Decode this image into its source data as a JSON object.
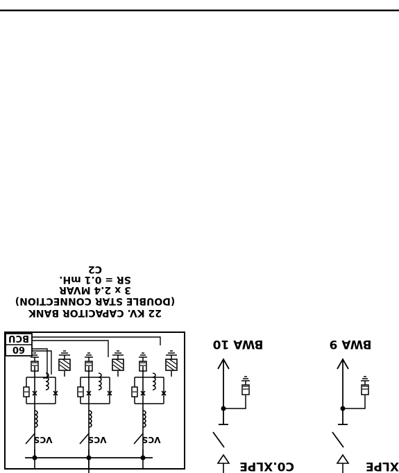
{
  "diagram": {
    "bank_label": {
      "line1": "C2",
      "line2": "SR = 0.1 mH.",
      "line3": "3 x 2.4 MVAR",
      "line4": "(DOUBLE STAR CONNECTION)",
      "line5": "22 KV. CAPACITOR BANK"
    },
    "relay_box": {
      "top": "BCU",
      "bottom": "60"
    },
    "vcs_labels": [
      "VCS",
      "VCS",
      "VCS"
    ],
    "feeders": [
      {
        "label": "BWA 10",
        "cable": "C0.XLPE"
      },
      {
        "label": "BWA 9",
        "cable": "XLPE"
      }
    ]
  },
  "colors": {
    "line": "#000000",
    "background": "#ffffff"
  }
}
